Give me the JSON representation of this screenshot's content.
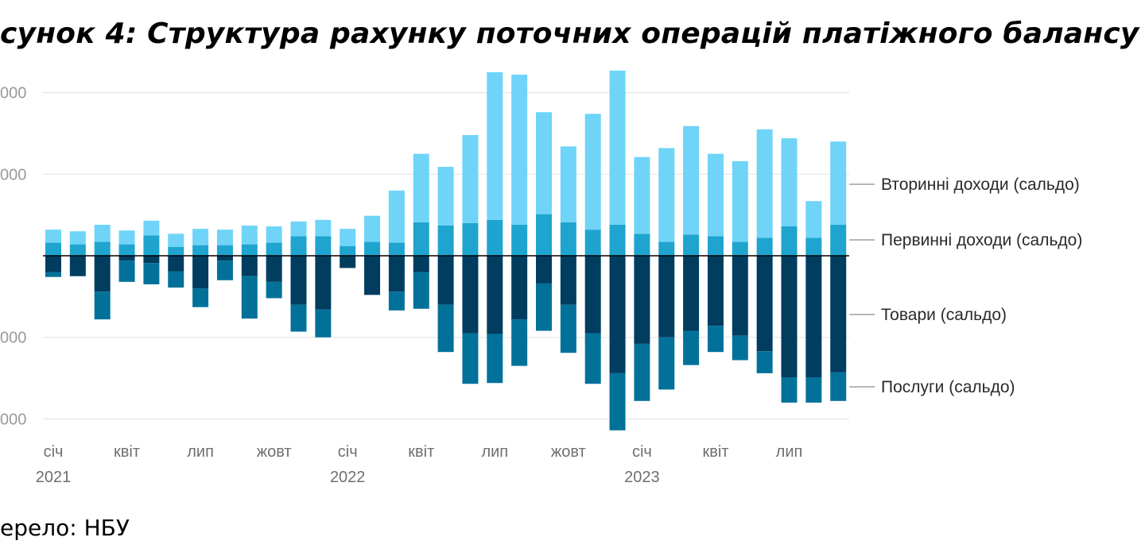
{
  "title": "сунок 4: Структура рахунку поточних операцій платіжного балансу",
  "source": "ерело: НБУ",
  "colors": {
    "secondary_income": "#6fd4f7",
    "primary_income": "#1ea4cf",
    "goods": "#003d5f",
    "services": "#02719a",
    "grid": "#e6e6e6",
    "zero_line": "#000000",
    "leader": "#8a8a8a"
  },
  "chart_data": {
    "type": "bar",
    "stacked": true,
    "y_tick_labels": [
      {
        "value": 2000,
        "label": "000"
      },
      {
        "value": 1000,
        "label": "000"
      },
      {
        "value": -1000,
        "label": "000"
      },
      {
        "value": -2000,
        "label": "000"
      }
    ],
    "ylim": [
      -2150,
      2300
    ],
    "grid": true,
    "x_tick_labels": [
      {
        "index": 0,
        "lines": [
          "січ",
          "2021"
        ]
      },
      {
        "index": 3,
        "lines": [
          "квіт"
        ]
      },
      {
        "index": 6,
        "lines": [
          "лип"
        ]
      },
      {
        "index": 9,
        "lines": [
          "жовт"
        ]
      },
      {
        "index": 12,
        "lines": [
          "січ",
          "2022"
        ]
      },
      {
        "index": 15,
        "lines": [
          "квіт"
        ]
      },
      {
        "index": 18,
        "lines": [
          "лип"
        ]
      },
      {
        "index": 21,
        "lines": [
          "жовт"
        ]
      },
      {
        "index": 24,
        "lines": [
          "січ",
          "2023"
        ]
      },
      {
        "index": 27,
        "lines": [
          "квіт"
        ]
      },
      {
        "index": 30,
        "lines": [
          "лип"
        ]
      }
    ],
    "legend_placement": "right",
    "series": [
      {
        "name": "Вторинні доходи (сальдо)",
        "color": "#6fd4f7",
        "values": [
          160,
          160,
          210,
          170,
          180,
          160,
          200,
          190,
          230,
          200,
          180,
          200,
          210,
          320,
          640,
          840,
          720,
          1080,
          1810,
          1840,
          1250,
          930,
          1420,
          1890,
          940,
          1150,
          1330,
          1010,
          990,
          1330,
          1080,
          450,
          1020
        ]
      },
      {
        "name": "Первинні доходи (сальдо)",
        "color": "#1ea4cf",
        "values": [
          160,
          140,
          170,
          140,
          250,
          110,
          130,
          130,
          140,
          160,
          240,
          240,
          120,
          170,
          160,
          410,
          370,
          400,
          440,
          380,
          510,
          410,
          320,
          380,
          270,
          170,
          260,
          240,
          170,
          220,
          360,
          220,
          380
        ]
      },
      {
        "name": "Товари (сальдо)",
        "color": "#003d5f",
        "values": [
          -200,
          -250,
          -440,
          -60,
          -90,
          -190,
          -400,
          -60,
          -250,
          -320,
          -600,
          -660,
          -150,
          -480,
          -440,
          -200,
          -600,
          -950,
          -960,
          -780,
          -340,
          -600,
          -950,
          -1440,
          -1080,
          -1000,
          -920,
          -860,
          -980,
          -1170,
          -1490,
          -1490,
          -1430
        ]
      },
      {
        "name": "Послуги (сальдо)",
        "color": "#02719a",
        "values": [
          -60,
          0,
          -340,
          -260,
          -260,
          -200,
          -230,
          -240,
          -520,
          -200,
          -330,
          -340,
          0,
          0,
          -230,
          -450,
          -580,
          -620,
          -600,
          -570,
          -580,
          -590,
          -620,
          -700,
          -700,
          -640,
          -420,
          -320,
          -300,
          -270,
          -310,
          -310,
          -350
        ]
      }
    ]
  }
}
